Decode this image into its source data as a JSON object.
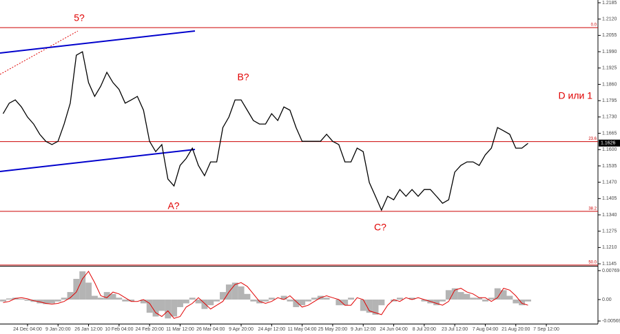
{
  "chart_data": [
    {
      "type": "line",
      "categories": [
        null,
        null,
        null,
        null,
        "24 Dec 04:00",
        null,
        null,
        null,
        null,
        "9 Jan 20:00",
        null,
        null,
        null,
        null,
        "26 Jan 12:00",
        null,
        null,
        null,
        null,
        "10 Feb 04:00",
        null,
        null,
        null,
        null,
        "24 Feb 20:00",
        null,
        null,
        null,
        null,
        "11 Mar 12:00",
        null,
        null,
        null,
        null,
        "26 Mar 04:00",
        null,
        null,
        null,
        null,
        "9 Apr 20:00",
        null,
        null,
        null,
        null,
        "24 Apr 12:00",
        null,
        null,
        null,
        null,
        "11 May 04:00",
        null,
        null,
        null,
        null,
        "25 May 20:00",
        null,
        null,
        null,
        null,
        "9 Jun 12:00",
        null,
        null,
        null,
        null,
        "24 Jun 04:00",
        null,
        null,
        null,
        null,
        "8 Jul 20:00",
        null,
        null,
        null,
        null,
        "23 Jul 12:00",
        null,
        null,
        null,
        null,
        "7 Aug 04:00",
        null,
        null,
        null,
        null,
        "21 Aug 20:00",
        null,
        null,
        null,
        null,
        "7 Sep 12:00"
      ],
      "series": [
        {
          "color": "#000000",
          "values": [
            1.1743,
            1.1785,
            1.1798,
            1.177,
            1.173,
            1.1702,
            1.1661,
            1.1633,
            1.162,
            1.1633,
            1.1702,
            1.1785,
            1.1976,
            1.199,
            1.1867,
            1.1812,
            1.1853,
            1.1908,
            1.1867,
            1.184,
            1.1785,
            1.1798,
            1.1812,
            1.1757,
            1.1633,
            1.1592,
            1.162,
            1.1483,
            1.1455,
            1.1537,
            1.1565,
            1.1606,
            1.1537,
            1.1496,
            1.1551,
            1.1551,
            1.1688,
            1.173,
            1.1798,
            1.1798,
            1.1757,
            1.1716,
            1.1702,
            1.1702,
            1.1743,
            1.1716,
            1.177,
            1.1757,
            1.1688,
            1.1633,
            1.1633,
            1.1633,
            1.1633,
            1.1661,
            1.1633,
            1.162,
            1.1551,
            1.1551,
            1.1606,
            1.1592,
            1.1469,
            1.1414,
            1.1359,
            1.1414,
            1.14,
            1.1441,
            1.1414,
            1.1441,
            1.1414,
            1.1441,
            1.1441,
            1.1414,
            1.1386,
            1.14,
            1.151,
            1.1537,
            1.1551,
            1.1551,
            1.1537,
            1.1579,
            1.1606,
            1.1688,
            1.1675,
            1.1661,
            1.1606,
            1.1606,
            1.1625,
            null,
            null,
            null
          ]
        }
      ],
      "ylim": [
        1.1137,
        1.2196
      ],
      "yticks": [
        1.2185,
        {
          "value": 1.212,
          "label": "1.2120"
        },
        1.2055,
        {
          "value": 1.199,
          "label": "1.1990"
        },
        1.1925,
        {
          "value": 1.186,
          "label": "1.1860"
        },
        1.1795,
        {
          "value": 1.173,
          "label": "1.1730"
        },
        1.1665,
        {
          "value": 1.16,
          "label": "1.1600"
        },
        1.1535,
        {
          "value": 1.147,
          "label": "1.1470"
        },
        1.1405,
        {
          "value": 1.134,
          "label": "1.1340"
        },
        1.1275,
        {
          "value": 1.121,
          "label": "1.1210"
        },
        1.1145
      ],
      "levels": [
        {
          "label": "0.0",
          "value": 1.2086
        },
        {
          "label": "23.6",
          "value": 1.1632
        },
        {
          "label": "38.2",
          "value": 1.1354
        },
        {
          "label": "50.0",
          "value": 1.114
        }
      ],
      "level_color": "#cc0000",
      "last_price": 1.1626,
      "annotations": [
        "5?",
        "B?",
        "A?",
        "C?",
        "D или 1"
      ]
    },
    {
      "type": "bar",
      "color": "#b4b4b4",
      "values": [
        -0.0005,
        0.0003,
        0.0005,
        0.0002,
        -0.0003,
        -0.0006,
        -0.001,
        -0.0012,
        -0.001,
        -0.0005,
        0.0005,
        0.002,
        0.0055,
        0.0075,
        0.0045,
        0.001,
        0.0005,
        0.002,
        0.0015,
        0.0005,
        -0.0005,
        -0.0005,
        0,
        -0.001,
        -0.0035,
        -0.0045,
        -0.003,
        -0.005,
        -0.0045,
        -0.002,
        -0.001,
        0.0005,
        -0.001,
        -0.0025,
        -0.0015,
        -0.0005,
        0.002,
        0.004,
        0.0045,
        0.0035,
        0.0015,
        -0.0005,
        -0.001,
        -0.0005,
        0.0005,
        0,
        0.001,
        -0.0005,
        -0.002,
        -0.0015,
        -0.0005,
        0.0005,
        0.001,
        0.0005,
        0,
        -0.0015,
        -0.0015,
        0.0005,
        0,
        -0.003,
        -0.0035,
        -0.004,
        -0.0015,
        0,
        -0.0005,
        0.0005,
        0,
        0.0005,
        0,
        -0.0005,
        -0.001,
        -0.0015,
        -0.0005,
        0.0025,
        0.003,
        0.002,
        0.0015,
        0.0005,
        0.0005,
        -0.0005,
        0.0005,
        0.003,
        0.0025,
        0.001,
        -0.001,
        -0.0015,
        -0.0005,
        null,
        null,
        null
      ],
      "series": [
        {
          "color": "#e00000",
          "values": [
            -0.0008,
            -0.0005,
            0.0003,
            0.0005,
            0.0002,
            -0.0003,
            -0.0006,
            -0.001,
            -0.0012,
            -0.001,
            -0.0005,
            0.0005,
            0.002,
            0.0055,
            0.0075,
            0.0045,
            0.001,
            0.0005,
            0.002,
            0.0015,
            0.0005,
            -0.0005,
            -0.0005,
            0,
            -0.001,
            -0.0035,
            -0.0045,
            -0.003,
            -0.005,
            -0.0045,
            -0.002,
            -0.001,
            0.0005,
            -0.001,
            -0.0025,
            -0.0015,
            -0.0005,
            0.002,
            0.004,
            0.0045,
            0.0035,
            0.0015,
            -0.0005,
            -0.001,
            -0.0005,
            0.0005,
            0,
            0.001,
            -0.0005,
            -0.002,
            -0.0015,
            -0.0005,
            0.0005,
            0.001,
            0.0005,
            0,
            -0.0015,
            -0.0015,
            0.0005,
            0,
            -0.003,
            -0.0035,
            -0.004,
            -0.0015,
            0,
            -0.0005,
            0.0005,
            0,
            0.0005,
            0,
            -0.0005,
            -0.001,
            -0.0015,
            -0.0005,
            0.0025,
            0.003,
            0.002,
            0.0015,
            0.0005,
            0.0005,
            -0.0005,
            0.0005,
            0.003,
            0.0025,
            0.001,
            -0.001,
            -0.0015,
            null,
            null,
            null
          ]
        }
      ],
      "ylim": [
        -0.0064,
        0.0086
      ],
      "yticks": [
        0.00769,
        {
          "value": 0,
          "label": "0.00"
        },
        -0.00569
      ]
    }
  ]
}
